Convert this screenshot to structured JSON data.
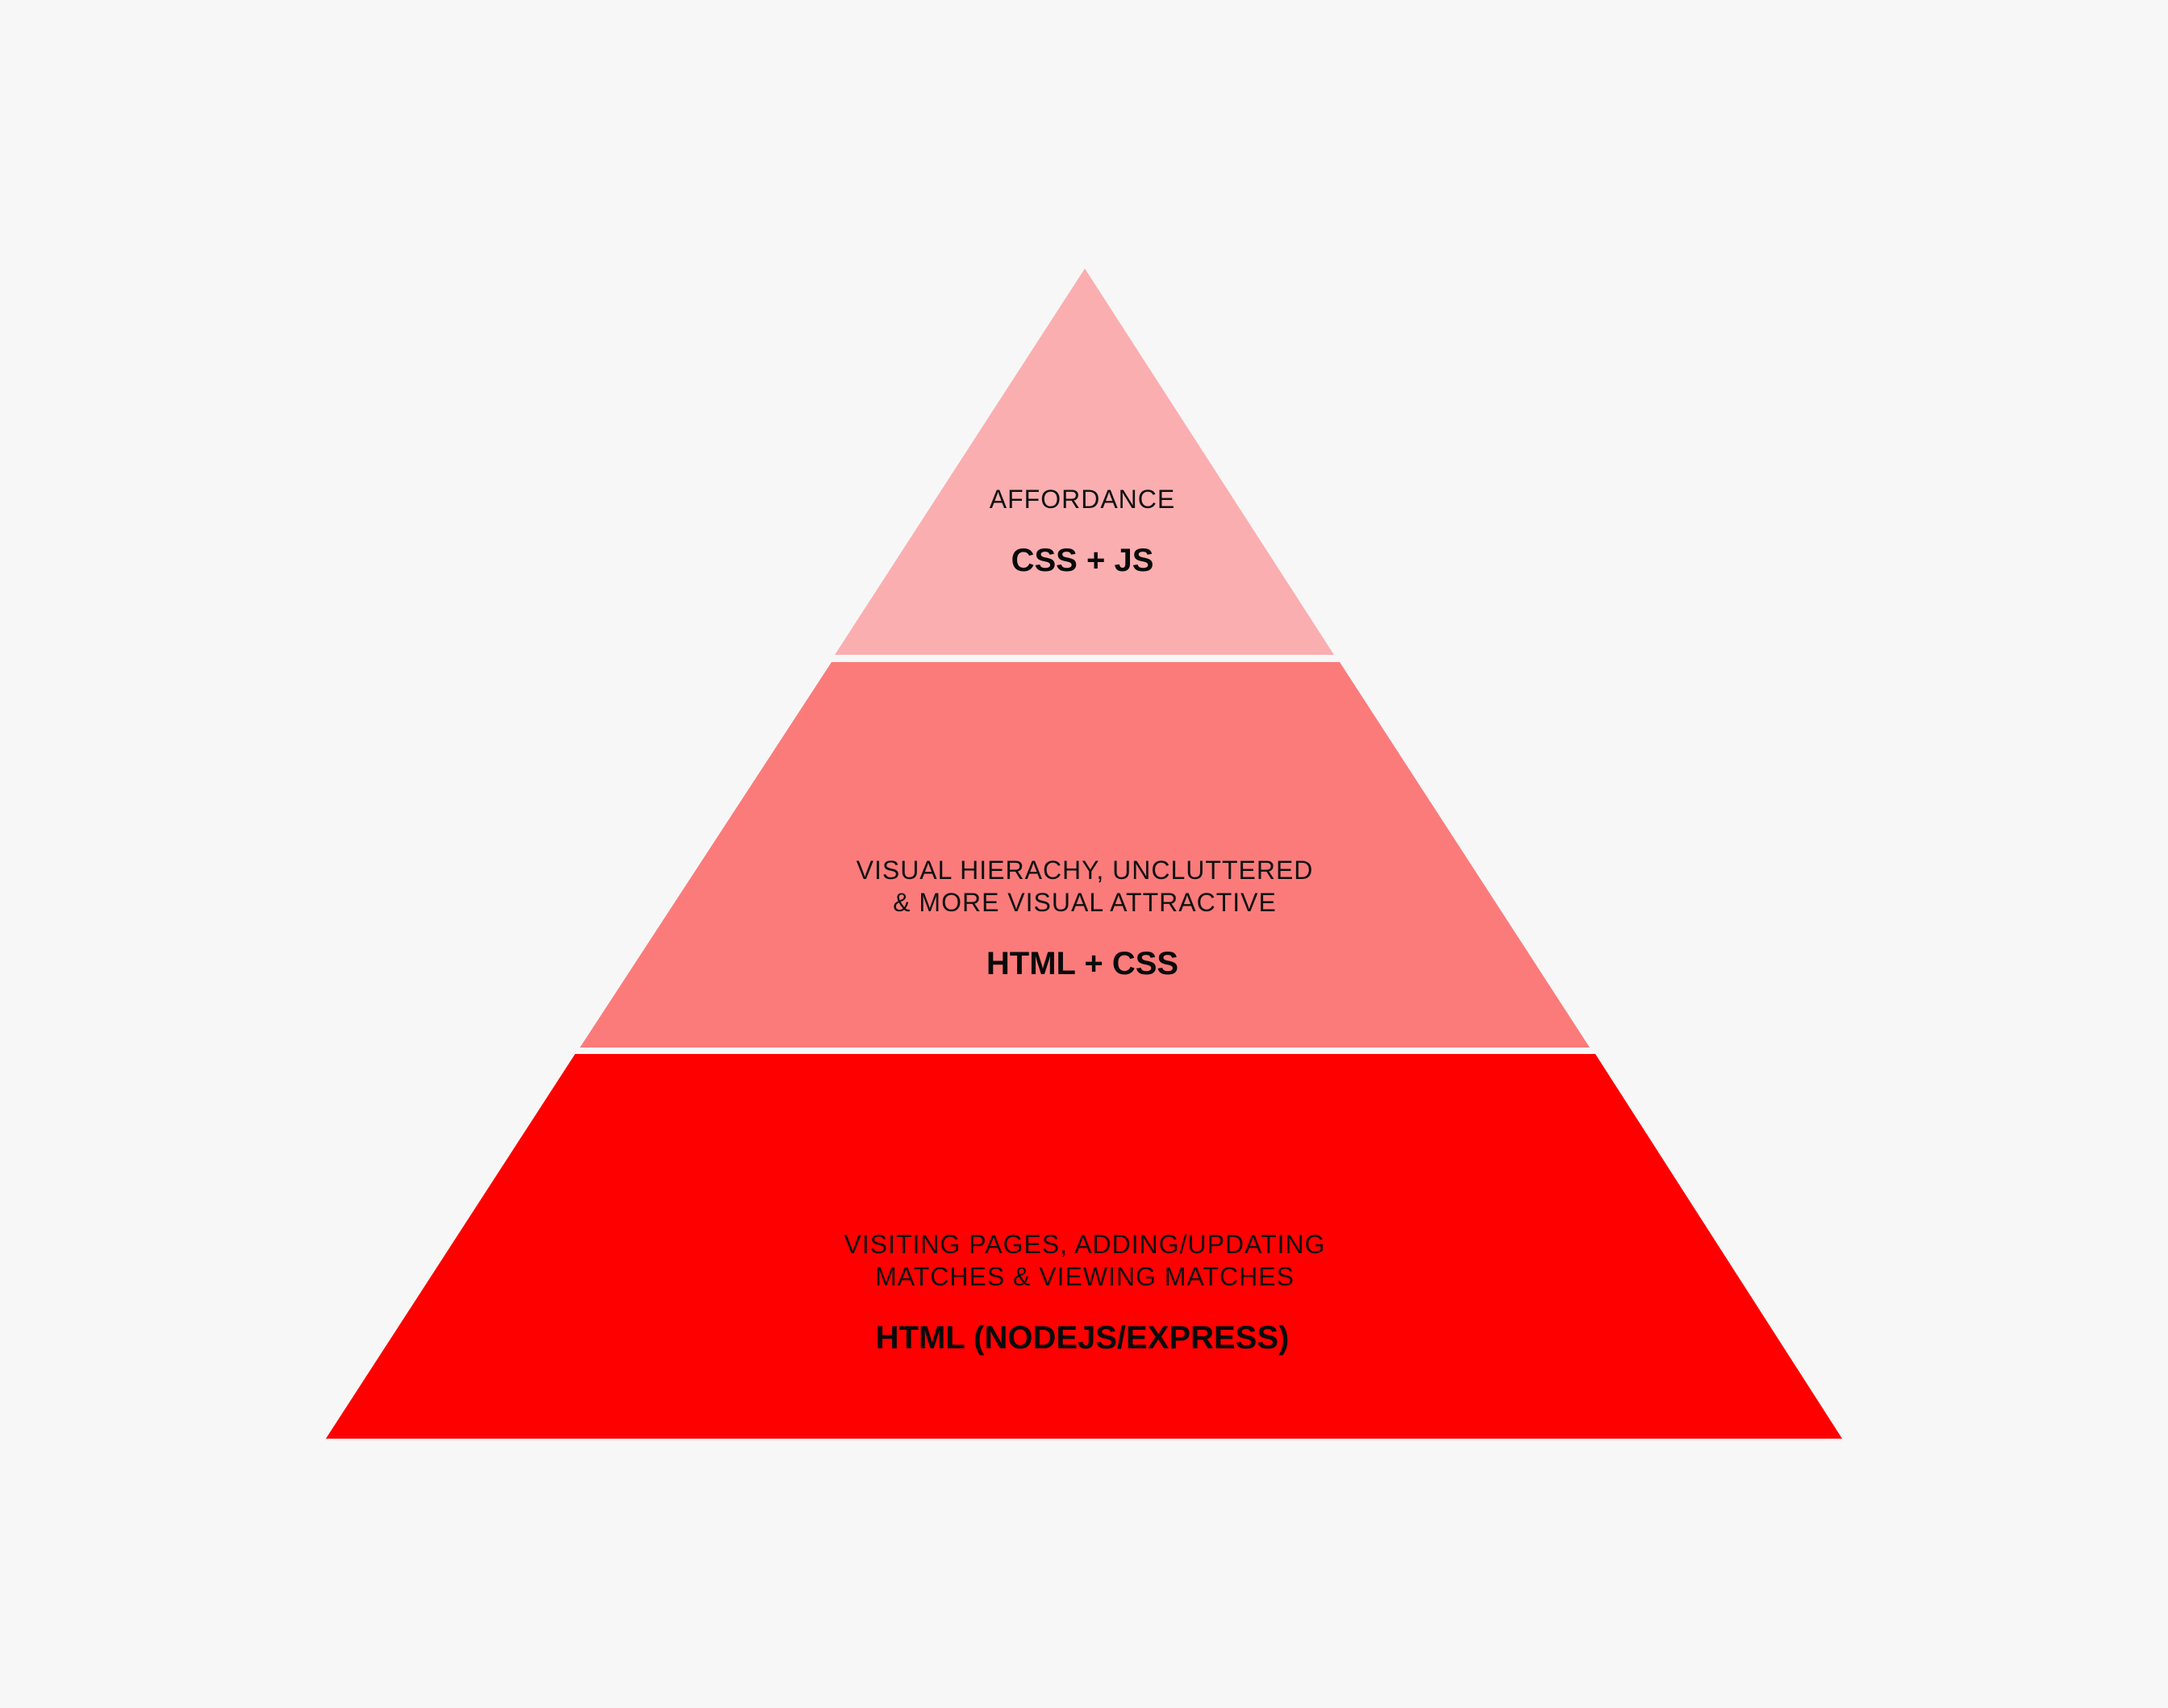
{
  "colors": {
    "background": "#f7f7f7",
    "tier_top": "#fbaeb0",
    "tier_middle": "#fb7b7b",
    "tier_bottom": "#ff0000",
    "separator": "#ffffff"
  },
  "tiers": [
    {
      "subtitle_lines": [
        "AFFORDANCE"
      ],
      "title": "CSS + JS"
    },
    {
      "subtitle_lines": [
        "VISUAL HIERACHY, UNCLUTTERED",
        "& MORE VISUAL ATTRACTIVE"
      ],
      "title": "HTML + CSS"
    },
    {
      "subtitle_lines": [
        "VISITING PAGES, ADDING/UPDATING",
        "MATCHES & VIEWING MATCHES"
      ],
      "title": "HTML (NODEJS/EXPRESS)"
    }
  ]
}
